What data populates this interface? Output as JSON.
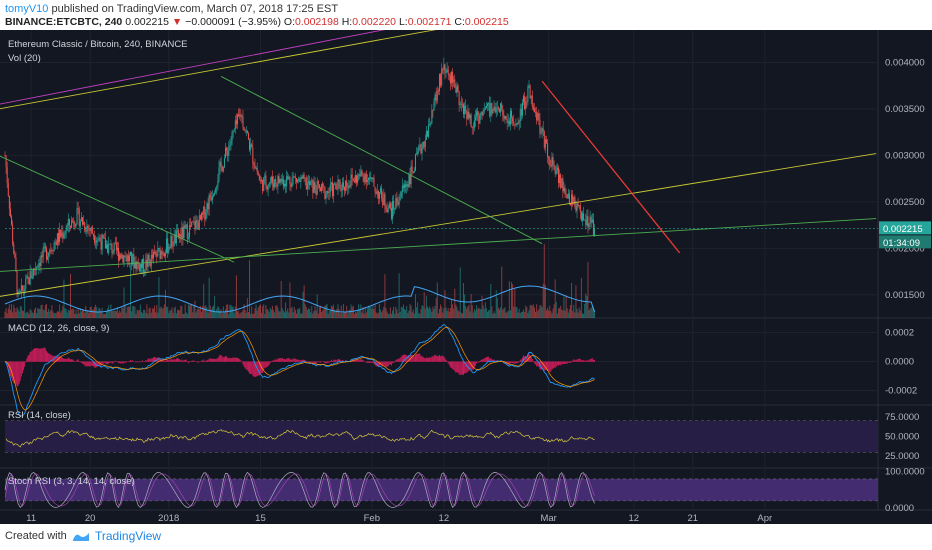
{
  "header": {
    "author": "tomyV10",
    "published": "published on TradingView.com, March 07, 2018 17:25 EST",
    "symbol": "BINANCE:ETCBTC, 240",
    "last": "0.002215",
    "change": "−0.000091 (−3.95%)",
    "o_label": "O:",
    "o": "0.002198",
    "h_label": "H:",
    "h": "0.002220",
    "l_label": "L:",
    "l": "0.002171",
    "c_label": "C:",
    "c": "0.002215"
  },
  "panes": {
    "main_title": "Ethereum Classic / Bitcoin, 240, BINANCE",
    "vol_title": "Vol (20)",
    "macd_title": "MACD (12, 26, close, 9)",
    "rsi_title": "RSI (14, close)",
    "stoch_title": "Stoch RSI (3, 3, 14, 14, close)"
  },
  "price_badge": "0.002215",
  "countdown_badge": "01:34:09",
  "footer": {
    "created": "Created with",
    "brand": "TradingView"
  },
  "colors": {
    "background": "#131722",
    "up": "#26a69a",
    "down": "#ef5350",
    "price_badge": "#26a69a",
    "trendline_green": "#4caf50",
    "trendline_yellow": "#c8c832",
    "trendline_magenta": "#c040c0",
    "trendline_red": "#e53935",
    "rsi_line": "#d4c93a",
    "stoch_k": "#b0aec0",
    "stoch_band": "#4a2f7a"
  },
  "chart_data": [
    {
      "type": "candlestick",
      "title": "Ethereum Classic / Bitcoin, 240, BINANCE",
      "x_ticks": [
        "11",
        "20",
        "2018",
        "15",
        "Feb",
        "12",
        "Mar",
        "12",
        "21",
        "Apr"
      ],
      "y_ticks": [
        "0.004000",
        "0.003500",
        "0.003000",
        "0.002500",
        "0.002000",
        "0.001500"
      ],
      "ylim": [
        0.00125,
        0.00435
      ],
      "key_points": [
        {
          "date": "Dec 07",
          "price": 0.003
        },
        {
          "date": "Dec 09",
          "price": 0.00145
        },
        {
          "date": "Dec 12",
          "price": 0.00185
        },
        {
          "date": "Dec 18",
          "price": 0.00235
        },
        {
          "date": "Dec 22",
          "price": 0.00205
        },
        {
          "date": "Dec 28",
          "price": 0.0018
        },
        {
          "date": "Jan 02",
          "price": 0.0021
        },
        {
          "date": "Jan 06",
          "price": 0.0023
        },
        {
          "date": "Jan 12",
          "price": 0.00345
        },
        {
          "date": "Jan 15",
          "price": 0.0027
        },
        {
          "date": "Jan 20",
          "price": 0.00275
        },
        {
          "date": "Jan 25",
          "price": 0.0026
        },
        {
          "date": "Jan 31",
          "price": 0.0028
        },
        {
          "date": "Feb 04",
          "price": 0.0024
        },
        {
          "date": "Feb 07",
          "price": 0.0028
        },
        {
          "date": "Feb 10",
          "price": 0.00335
        },
        {
          "date": "Feb 12",
          "price": 0.004
        },
        {
          "date": "Feb 16",
          "price": 0.00335
        },
        {
          "date": "Feb 20",
          "price": 0.00355
        },
        {
          "date": "Feb 23",
          "price": 0.00335
        },
        {
          "date": "Feb 25",
          "price": 0.0037
        },
        {
          "date": "Feb 28",
          "price": 0.003
        },
        {
          "date": "Mar 03",
          "price": 0.00255
        },
        {
          "date": "Mar 05",
          "price": 0.00235
        },
        {
          "date": "Mar 07",
          "price": 0.002215
        }
      ],
      "last": 0.002215
    },
    {
      "type": "bar",
      "title": "Vol (20)"
    },
    {
      "type": "line",
      "title": "MACD (12, 26, close, 9)",
      "y_ticks": [
        "0.0002",
        "0.0000",
        "-0.0002"
      ],
      "ylim": [
        -0.0003,
        0.0003
      ]
    },
    {
      "type": "line",
      "title": "RSI (14, close)",
      "y_ticks": [
        "75.0000",
        "50.0000",
        "25.0000"
      ],
      "ylim": [
        10,
        90
      ],
      "bands": [
        70,
        30
      ]
    },
    {
      "type": "line",
      "title": "Stoch RSI (3, 3, 14, 14, close)",
      "y_ticks": [
        "100.0000",
        "0.0000"
      ],
      "ylim": [
        -5,
        110
      ],
      "bands": [
        80,
        20
      ]
    }
  ]
}
